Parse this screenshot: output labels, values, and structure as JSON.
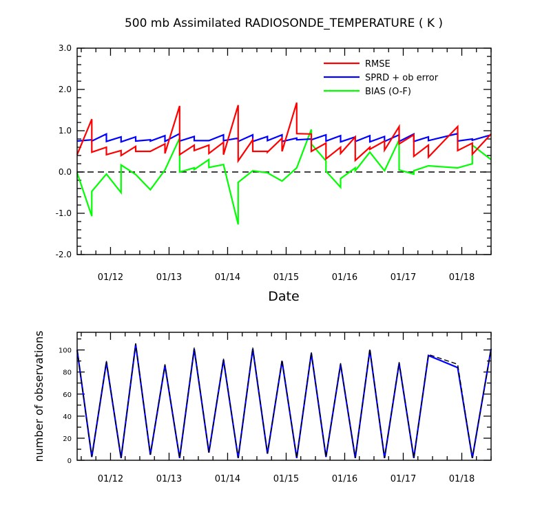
{
  "chart_data": [
    {
      "type": "line",
      "title": "500 mb Assimilated RADIOSONDE_TEMPERATURE ( K )",
      "xlabel": "Date",
      "ylabel": "",
      "ylim": [
        -2.0,
        3.0
      ],
      "yticks": [
        "-2.0",
        "-1.0",
        "0.0",
        "1.0",
        "2.0",
        "3.0"
      ],
      "xlim": [
        11.43,
        18.5
      ],
      "xticks": [
        "01/12",
        "01/13",
        "01/14",
        "01/15",
        "01/16",
        "01/17",
        "01/18"
      ],
      "reference_line": {
        "y": 0.0,
        "style": "dashed",
        "color": "#000000"
      },
      "legend": "top-right",
      "series": [
        {
          "name": "RMSE",
          "color": "#ff0000",
          "x": [
            11.43,
            11.68,
            11.68,
            11.93,
            11.93,
            12.18,
            12.18,
            12.43,
            12.43,
            12.68,
            12.68,
            12.93,
            12.93,
            13.18,
            13.18,
            13.43,
            13.43,
            13.68,
            13.68,
            13.93,
            13.93,
            14.18,
            14.18,
            14.43,
            14.43,
            14.68,
            14.68,
            14.93,
            14.93,
            15.18,
            15.18,
            15.43,
            15.43,
            15.68,
            15.68,
            15.93,
            15.93,
            16.18,
            16.18,
            16.43,
            16.43,
            16.68,
            16.68,
            16.93,
            16.93,
            17.18,
            17.18,
            17.43,
            17.43,
            17.93,
            17.93,
            18.18,
            18.18,
            18.5
          ],
          "y": [
            0.42,
            1.28,
            0.48,
            0.6,
            0.42,
            0.52,
            0.4,
            0.62,
            0.5,
            0.5,
            0.5,
            0.68,
            0.45,
            1.6,
            0.42,
            0.65,
            0.52,
            0.65,
            0.45,
            0.72,
            0.42,
            1.62,
            0.27,
            0.78,
            0.5,
            0.5,
            0.48,
            0.82,
            0.5,
            1.68,
            0.93,
            0.92,
            0.5,
            0.7,
            0.32,
            0.6,
            0.45,
            0.85,
            0.28,
            0.6,
            0.55,
            0.75,
            0.53,
            1.1,
            0.68,
            0.9,
            0.38,
            0.65,
            0.36,
            1.1,
            0.52,
            0.7,
            0.43,
            0.92
          ]
        },
        {
          "name": "SPRD + ob error",
          "color": "#0000ff",
          "x": [
            11.43,
            11.68,
            11.68,
            11.93,
            11.93,
            12.18,
            12.18,
            12.43,
            12.43,
            12.68,
            12.68,
            12.93,
            12.93,
            13.18,
            13.18,
            13.43,
            13.43,
            13.68,
            13.68,
            13.93,
            13.93,
            14.18,
            14.18,
            14.43,
            14.43,
            14.68,
            14.68,
            14.93,
            14.93,
            15.18,
            15.18,
            15.43,
            15.43,
            15.68,
            15.68,
            15.93,
            15.93,
            16.18,
            16.18,
            16.43,
            16.43,
            16.68,
            16.68,
            16.93,
            16.93,
            17.18,
            17.18,
            17.43,
            17.43,
            17.93,
            17.93,
            18.18,
            18.18,
            18.5
          ],
          "y": [
            0.75,
            0.78,
            0.75,
            0.92,
            0.74,
            0.85,
            0.73,
            0.85,
            0.75,
            0.78,
            0.75,
            0.88,
            0.74,
            0.93,
            0.75,
            0.86,
            0.76,
            0.76,
            0.76,
            0.9,
            0.76,
            0.82,
            0.74,
            0.9,
            0.74,
            0.86,
            0.76,
            0.9,
            0.74,
            0.82,
            0.78,
            0.8,
            0.78,
            0.9,
            0.75,
            0.88,
            0.73,
            0.85,
            0.74,
            0.88,
            0.73,
            0.86,
            0.74,
            0.9,
            0.74,
            0.92,
            0.74,
            0.85,
            0.76,
            0.93,
            0.75,
            0.8,
            0.77,
            0.9
          ]
        },
        {
          "name": "BIAS (O-F)",
          "color": "#00ff00",
          "x": [
            11.43,
            11.68,
            11.68,
            11.93,
            11.93,
            12.18,
            12.18,
            12.43,
            12.43,
            12.68,
            12.68,
            12.93,
            12.93,
            13.18,
            13.18,
            13.43,
            13.43,
            13.68,
            13.68,
            13.93,
            13.93,
            14.18,
            14.18,
            14.43,
            14.43,
            14.68,
            14.68,
            14.93,
            14.93,
            15.18,
            15.18,
            15.43,
            15.43,
            15.68,
            15.68,
            15.93,
            15.93,
            16.18,
            16.18,
            16.43,
            16.43,
            16.68,
            16.68,
            16.93,
            16.93,
            17.18,
            17.18,
            17.43,
            17.43,
            17.93,
            17.93,
            18.18,
            18.18,
            18.5
          ],
          "y": [
            -0.02,
            -1.07,
            -0.47,
            -0.05,
            -0.05,
            -0.5,
            0.17,
            -0.06,
            -0.06,
            -0.43,
            -0.43,
            0.05,
            0.05,
            0.82,
            0.0,
            0.1,
            0.06,
            0.3,
            0.11,
            0.18,
            0.18,
            -1.27,
            -0.25,
            0.03,
            0.03,
            -0.02,
            -0.02,
            -0.22,
            -0.22,
            0.1,
            0.1,
            1.03,
            0.68,
            0.27,
            0.02,
            -0.37,
            -0.16,
            0.1,
            0.03,
            0.48,
            0.48,
            0.03,
            0.03,
            0.78,
            0.05,
            -0.05,
            0.03,
            0.15,
            0.15,
            0.1,
            0.1,
            0.2,
            0.65,
            0.3
          ]
        }
      ]
    },
    {
      "type": "line",
      "title": "",
      "xlabel": "",
      "ylabel": "number of observations",
      "ylim": [
        0,
        116
      ],
      "yticks": [
        "0",
        "20",
        "40",
        "60",
        "80",
        "100"
      ],
      "xlim": [
        11.43,
        18.5
      ],
      "xticks": [
        "01/12",
        "01/13",
        "01/14",
        "01/15",
        "01/16",
        "01/17",
        "01/18"
      ],
      "series": [
        {
          "name": "",
          "color": "#0000ff",
          "style": "solid",
          "x": [
            11.43,
            11.68,
            11.93,
            12.18,
            12.43,
            12.68,
            12.93,
            13.18,
            13.43,
            13.68,
            13.93,
            14.18,
            14.43,
            14.68,
            14.93,
            15.18,
            15.43,
            15.68,
            15.93,
            16.18,
            16.43,
            16.68,
            16.93,
            17.18,
            17.43,
            17.93,
            18.18,
            18.5
          ],
          "y": [
            100,
            3,
            89,
            2,
            105,
            5,
            86,
            2,
            101,
            7,
            91,
            2,
            101,
            6,
            90,
            2,
            97,
            3,
            87,
            2,
            100,
            2,
            88,
            2,
            95,
            84,
            2,
            101
          ]
        },
        {
          "name": "",
          "color": "#000000",
          "style": "dashed",
          "x": [
            11.43,
            11.68,
            11.93,
            12.18,
            12.43,
            12.68,
            12.93,
            13.18,
            13.43,
            13.68,
            13.93,
            14.18,
            14.43,
            14.68,
            14.93,
            15.18,
            15.43,
            15.68,
            15.93,
            16.18,
            16.43,
            16.68,
            16.93,
            17.18,
            17.43,
            17.93,
            18.18,
            18.5
          ],
          "y": [
            100,
            3,
            90,
            2,
            106,
            5,
            87,
            2,
            102,
            7,
            92,
            2,
            102,
            6,
            91,
            2,
            98,
            3,
            88,
            2,
            101,
            2,
            89,
            2,
            96,
            87,
            2,
            101
          ]
        }
      ]
    }
  ]
}
